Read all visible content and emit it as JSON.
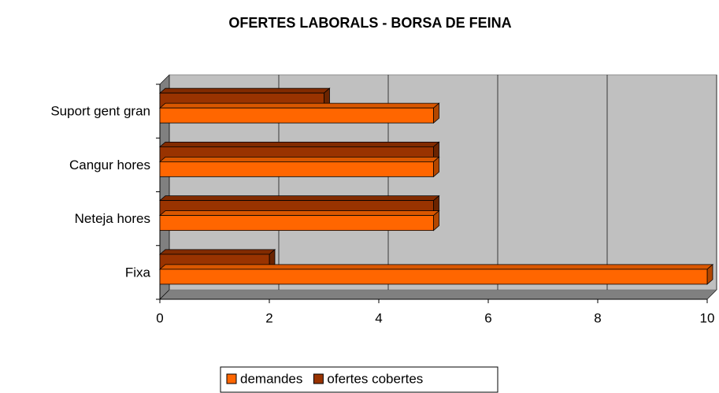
{
  "chart_data": {
    "type": "bar",
    "orientation": "horizontal",
    "title": "OFERTES LABORALS - BORSA DE FEINA",
    "categories": [
      "Fixa",
      "Neteja hores",
      "Cangur hores",
      "Suport gent gran"
    ],
    "series": [
      {
        "name": "demandes",
        "color": "#ff6600",
        "values": [
          10,
          5,
          5,
          5
        ]
      },
      {
        "name": "ofertes cobertes",
        "color": "#993300",
        "values": [
          2,
          5,
          5,
          3
        ]
      }
    ],
    "xlim": [
      0,
      10
    ],
    "xticks": [
      0,
      2,
      4,
      6,
      8,
      10
    ],
    "grid": true,
    "legend": "bottom"
  }
}
